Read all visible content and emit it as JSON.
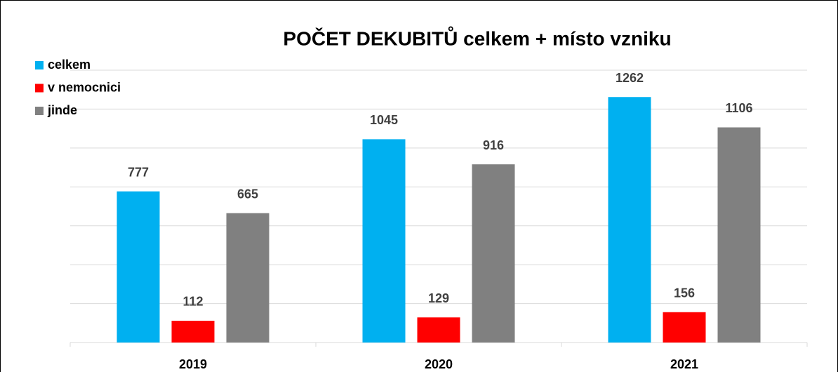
{
  "chart_data": {
    "type": "bar",
    "title": "POČET DEKUBITŮ  celkem + místo vzniku",
    "categories": [
      "2019",
      "2020",
      "2021"
    ],
    "series": [
      {
        "name": "celkem",
        "color": "#00b0f0",
        "values": [
          777,
          1045,
          1262
        ]
      },
      {
        "name": "v nemocnici",
        "color": "#ff0000",
        "values": [
          112,
          129,
          156
        ]
      },
      {
        "name": "jinde",
        "color": "#808080",
        "values": [
          665,
          916,
          1106
        ]
      }
    ],
    "ylim": [
      0,
      1400
    ],
    "yticks": [
      0,
      200,
      400,
      600,
      800,
      1000,
      1200,
      1400
    ],
    "grid": true,
    "legend": "top-left"
  }
}
